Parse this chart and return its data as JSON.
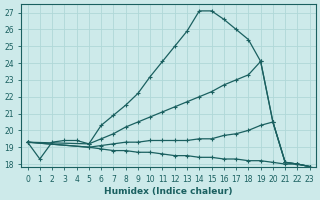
{
  "xlabel": "Humidex (Indice chaleur)",
  "bg_color": "#cdeaea",
  "grid_color": "#b0d8d8",
  "line_color": "#1a6060",
  "xlim": [
    -0.5,
    23.5
  ],
  "ylim": [
    17.8,
    27.5
  ],
  "yticks": [
    18,
    19,
    20,
    21,
    22,
    23,
    24,
    25,
    26,
    27
  ],
  "xticks": [
    0,
    1,
    2,
    3,
    4,
    5,
    6,
    7,
    8,
    9,
    10,
    11,
    12,
    13,
    14,
    15,
    16,
    17,
    18,
    19,
    20,
    21,
    22,
    23
  ],
  "series": [
    {
      "x": [
        0,
        1,
        2,
        3,
        4,
        5,
        6,
        7,
        8,
        9,
        10,
        11,
        12,
        13,
        14,
        15,
        16,
        17,
        18,
        19,
        20,
        21,
        22,
        23
      ],
      "y": [
        19.3,
        18.3,
        19.3,
        19.4,
        19.4,
        19.2,
        20.3,
        20.9,
        21.5,
        22.2,
        23.2,
        24.1,
        25.0,
        25.9,
        27.1,
        27.1,
        26.6,
        26.0,
        25.4,
        24.1,
        20.5,
        18.1,
        18.0,
        17.85
      ]
    },
    {
      "x": [
        0,
        5,
        6,
        7,
        8,
        9,
        10,
        11,
        12,
        13,
        14,
        15,
        16,
        17,
        18,
        19,
        20,
        21,
        22,
        23
      ],
      "y": [
        19.3,
        19.2,
        19.5,
        19.8,
        20.2,
        20.5,
        20.8,
        21.1,
        21.4,
        21.7,
        22.0,
        22.3,
        22.7,
        23.0,
        23.3,
        24.1,
        20.5,
        18.1,
        18.0,
        17.85
      ]
    },
    {
      "x": [
        0,
        5,
        6,
        7,
        8,
        9,
        10,
        11,
        12,
        13,
        14,
        15,
        16,
        17,
        18,
        19,
        20,
        21,
        22,
        23
      ],
      "y": [
        19.3,
        19.0,
        19.1,
        19.2,
        19.3,
        19.3,
        19.4,
        19.4,
        19.4,
        19.4,
        19.5,
        19.5,
        19.7,
        19.8,
        20.0,
        20.3,
        20.5,
        18.1,
        18.0,
        17.85
      ]
    },
    {
      "x": [
        0,
        5,
        6,
        7,
        8,
        9,
        10,
        11,
        12,
        13,
        14,
        15,
        16,
        17,
        18,
        19,
        20,
        21,
        22,
        23
      ],
      "y": [
        19.3,
        19.0,
        18.9,
        18.8,
        18.8,
        18.7,
        18.7,
        18.6,
        18.5,
        18.5,
        18.4,
        18.4,
        18.3,
        18.3,
        18.2,
        18.2,
        18.1,
        18.0,
        18.0,
        17.85
      ]
    }
  ]
}
